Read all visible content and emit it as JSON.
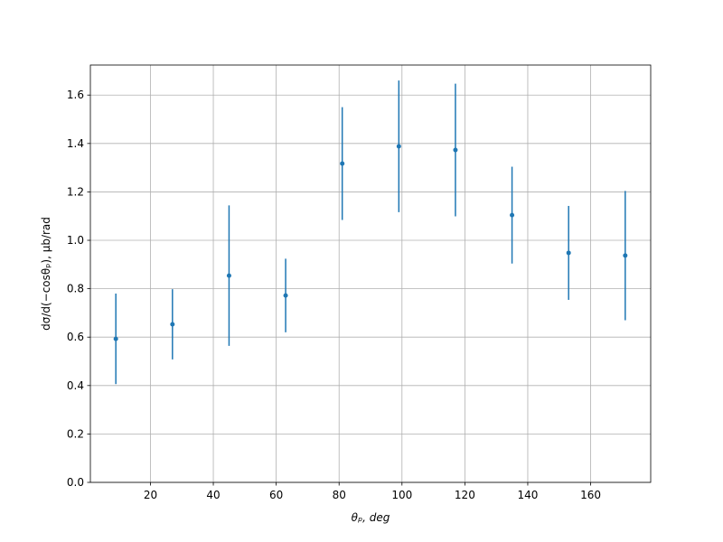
{
  "chart_data": {
    "type": "errorbar",
    "x_label": "θₚ, deg",
    "y_label": "dσ/d(−cosθₚ), μb/rad",
    "x": [
      9,
      27,
      45,
      63,
      81,
      99,
      117,
      135,
      153,
      171
    ],
    "series": [
      {
        "color": "#1f77b4",
        "values": [
          0.593,
          0.653,
          0.854,
          0.772,
          1.317,
          1.388,
          1.373,
          1.104,
          0.948,
          0.937
        ],
        "errors": [
          0.187,
          0.145,
          0.29,
          0.152,
          0.233,
          0.272,
          0.274,
          0.2,
          0.194,
          0.267
        ]
      }
    ],
    "xlim": [
      0.9,
      179.1
    ],
    "ylim": [
      0,
      1.724
    ],
    "xticks": [
      20,
      40,
      60,
      80,
      100,
      120,
      140,
      160
    ],
    "yticks": [
      {
        "value": 0,
        "label": "0.0"
      },
      {
        "value": 0.2,
        "label": "0.2"
      },
      {
        "value": 0.4,
        "label": "0.4"
      },
      {
        "value": 0.6,
        "label": "0.6"
      },
      {
        "value": 0.8,
        "label": "0.8"
      },
      {
        "value": 1.0,
        "label": "1.0"
      },
      {
        "value": 1.2,
        "label": "1.2"
      },
      {
        "value": 1.4,
        "label": "1.4"
      },
      {
        "value": 1.6,
        "label": "1.6"
      }
    ],
    "grid": true
  }
}
